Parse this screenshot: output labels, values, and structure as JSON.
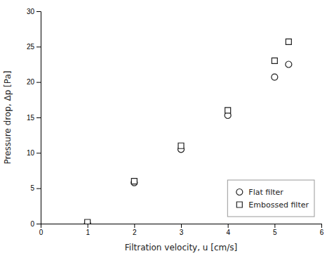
{
  "chart_data": {
    "type": "scatter",
    "xlabel": "Filtration velocity, u [cm/s]",
    "ylabel": "Pressure drop, Δp [Pa]",
    "x": [
      1,
      2,
      3,
      4,
      5,
      5.3
    ],
    "series": [
      {
        "name": "Flat filter",
        "values": [
          0.0,
          5.8,
          10.5,
          15.3,
          20.7,
          22.5
        ],
        "marker": "circle",
        "color": "#222222"
      },
      {
        "name": "Embossed filter",
        "values": [
          0.2,
          6.0,
          11.0,
          16.0,
          23.0,
          25.7
        ],
        "marker": "square",
        "color": "#222222"
      }
    ],
    "xlim": [
      0,
      6
    ],
    "ylim": [
      0,
      30
    ],
    "xticks": [
      0,
      1,
      2,
      3,
      4,
      5,
      6
    ],
    "yticks": [
      0,
      5,
      10,
      15,
      20,
      25,
      30
    ],
    "legend": "lower right"
  }
}
